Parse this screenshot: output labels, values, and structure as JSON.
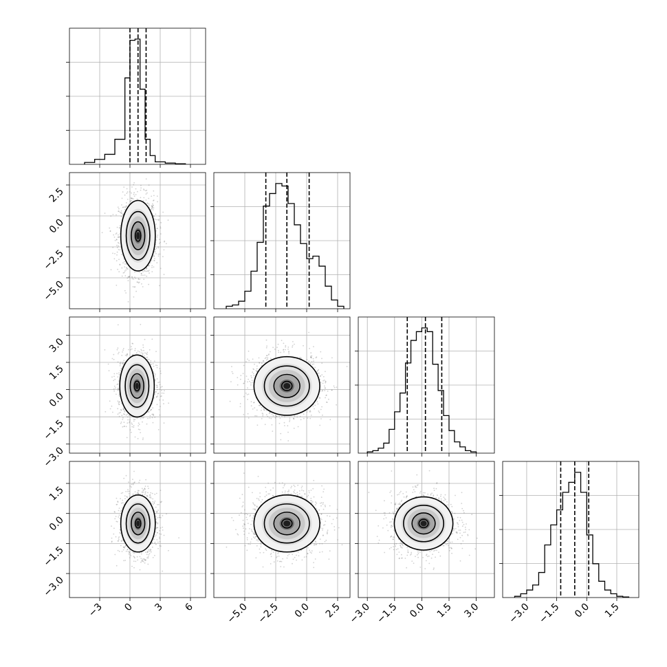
{
  "chart_data": {
    "type": "corner",
    "grid": true,
    "variables": [
      {
        "index": 0,
        "range": [
          -6.0,
          7.5
        ],
        "ticks": [
          -3,
          0,
          3,
          6
        ],
        "tick_labels": [
          "−3",
          "0",
          "3",
          "6"
        ],
        "quantiles": [
          0.0,
          0.8,
          1.6
        ],
        "histogram": {
          "bin_edges": [
            -4.5,
            -3.5,
            -2.5,
            -1.5,
            -0.5,
            0.0,
            0.5,
            1.0,
            1.5,
            2.0,
            2.5,
            3.5,
            4.5,
            5.5
          ],
          "counts": [
            0.015,
            0.04,
            0.08,
            0.2,
            0.69,
            0.99,
            1.0,
            0.6,
            0.2,
            0.07,
            0.02,
            0.01,
            0.005
          ]
        }
      },
      {
        "index": 1,
        "range": [
          -7.5,
          3.5
        ],
        "ticks": [
          -5.0,
          -2.5,
          0.0,
          2.5
        ],
        "tick_labels": [
          "−5.0",
          "−2.5",
          "0.0",
          "2.5"
        ],
        "quantiles": [
          -3.3,
          -1.6,
          0.2
        ],
        "histogram": {
          "bin_edges": [
            -6.5,
            -6.0,
            -5.5,
            -5.0,
            -4.5,
            -4.0,
            -3.5,
            -3.0,
            -2.5,
            -2.0,
            -1.5,
            -1.0,
            -0.5,
            0.0,
            0.5,
            1.0,
            1.5,
            2.0,
            2.5,
            3.0
          ],
          "counts": [
            0.02,
            0.03,
            0.06,
            0.14,
            0.3,
            0.53,
            0.82,
            0.92,
            1.0,
            0.98,
            0.84,
            0.67,
            0.52,
            0.4,
            0.42,
            0.34,
            0.18,
            0.07,
            0.02
          ]
        }
      },
      {
        "index": 2,
        "range": [
          -3.5,
          4.0
        ],
        "ticks": [
          -3.0,
          -1.5,
          0.0,
          1.5,
          3.0
        ],
        "tick_labels": [
          "−3.0",
          "−1.5",
          "0.0",
          "1.5",
          "3.0"
        ],
        "quantiles": [
          -0.8,
          0.2,
          1.1
        ],
        "histogram": {
          "bin_edges": [
            -3.0,
            -2.7,
            -2.4,
            -2.1,
            -1.8,
            -1.5,
            -1.2,
            -0.9,
            -0.6,
            -0.3,
            0.0,
            0.3,
            0.6,
            0.9,
            1.2,
            1.5,
            1.8,
            2.1,
            2.4,
            2.7,
            3.0
          ],
          "counts": [
            0.01,
            0.02,
            0.04,
            0.08,
            0.19,
            0.33,
            0.48,
            0.72,
            0.9,
            0.97,
            1.0,
            0.97,
            0.71,
            0.5,
            0.3,
            0.18,
            0.09,
            0.05,
            0.02,
            0.01
          ]
        }
      },
      {
        "index": 3,
        "range": [
          -4.2,
          2.6
        ],
        "ticks": [
          -3.0,
          -1.5,
          0.0,
          1.5
        ],
        "tick_labels": [
          "−3.0",
          "−1.5",
          "0.0",
          "1.5"
        ],
        "quantiles": [
          -1.3,
          -0.6,
          0.1
        ],
        "histogram": {
          "bin_edges": [
            -3.6,
            -3.3,
            -3.0,
            -2.7,
            -2.4,
            -2.1,
            -1.8,
            -1.5,
            -1.2,
            -0.9,
            -0.6,
            -0.3,
            0.0,
            0.3,
            0.6,
            0.9,
            1.2,
            1.5,
            1.8,
            2.1
          ],
          "counts": [
            0.01,
            0.03,
            0.06,
            0.1,
            0.2,
            0.42,
            0.58,
            0.7,
            0.84,
            0.92,
            1.0,
            0.84,
            0.5,
            0.27,
            0.13,
            0.06,
            0.03,
            0.01,
            0.005
          ]
        }
      }
    ],
    "pairs": [
      {
        "x": 0,
        "y": 1,
        "center": [
          0.8,
          -1.6
        ],
        "spread": [
          0.9,
          1.5
        ],
        "rotation": 0
      },
      {
        "x": 0,
        "y": 2,
        "center": [
          0.7,
          0.2
        ],
        "spread": [
          0.9,
          0.9
        ],
        "rotation": 0
      },
      {
        "x": 0,
        "y": 3,
        "center": [
          0.8,
          -0.5
        ],
        "spread": [
          0.9,
          0.75
        ],
        "rotation": 0
      },
      {
        "x": 1,
        "y": 2,
        "center": [
          -1.6,
          0.2
        ],
        "spread": [
          1.4,
          0.85
        ],
        "rotation": 0
      },
      {
        "x": 1,
        "y": 3,
        "center": [
          -1.6,
          -0.5
        ],
        "spread": [
          1.4,
          0.75
        ],
        "rotation": 0
      },
      {
        "x": 2,
        "y": 3,
        "center": [
          0.1,
          -0.5
        ],
        "spread": [
          0.85,
          0.7
        ],
        "rotation": 0
      }
    ]
  }
}
